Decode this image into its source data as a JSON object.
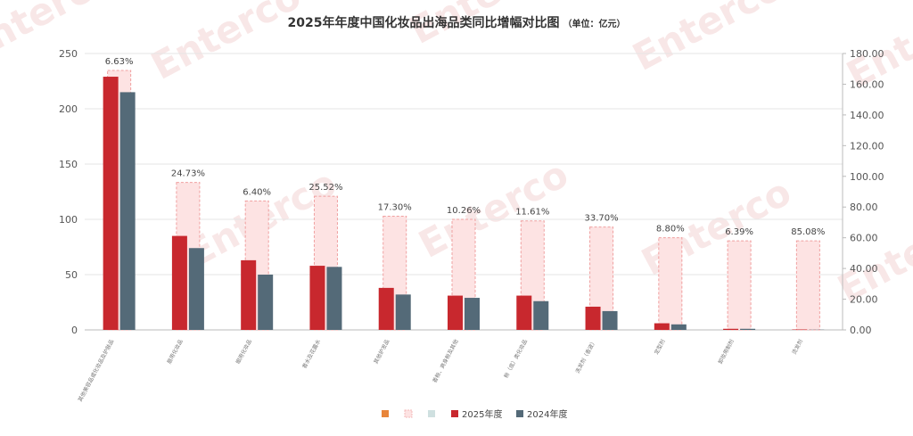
{
  "chart_data": {
    "type": "bar",
    "title": "2025年年度中国化妆品出海品类同比增幅对比图",
    "unit_note": "（单位：亿元）",
    "categories": [
      "其他美容品或化妆品及护肤品",
      "唇用化妆品",
      "眼用化妆品",
      "香水及花露水",
      "其他护发品",
      "香粉、爽身粉及其他",
      "粉（底）类化妆品",
      "洗发剂（香波）",
      "定型剂",
      "卸妆用制剂",
      "烫发剂"
    ],
    "series": [
      {
        "name": "",
        "axis": "right",
        "style": "dashed-light-pink",
        "values": [
          169,
          96,
          84,
          87,
          74,
          72,
          71,
          67,
          60,
          58,
          58
        ]
      },
      {
        "name": "2025年度",
        "axis": "left",
        "color": "#c8282e",
        "values": [
          229,
          85,
          63,
          58,
          38,
          31,
          31,
          21,
          6,
          1,
          0.4
        ]
      },
      {
        "name": "2024年度",
        "axis": "left",
        "color": "#546a78",
        "values": [
          215,
          74,
          50,
          57,
          32,
          29,
          26,
          17,
          5,
          1,
          0.2
        ]
      }
    ],
    "growth_labels": [
      "6.63%",
      "24.73%",
      "6.40%",
      "25.52%",
      "17.30%",
      "10.26%",
      "11.61%",
      "33.70%",
      "8.80%",
      "6.39%",
      "85.08%"
    ],
    "ylim_left": [
      0,
      250
    ],
    "yticks_left": [
      "0",
      "50",
      "100",
      "150",
      "200",
      "250"
    ],
    "ylim_right": [
      0,
      180
    ],
    "yticks_right": [
      "0.00",
      "20.00",
      "40.00",
      "60.00",
      "80.00",
      "100.00",
      "120.00",
      "140.00",
      "160.00",
      "180.00"
    ],
    "grid": true,
    "legend": {
      "position": "bottom-center",
      "items": [
        {
          "label": "",
          "color": "#e8853a",
          "kind": "filled"
        },
        {
          "label": "",
          "color": "#f4b8b8",
          "kind": "dashed"
        },
        {
          "label": "",
          "color": "#cfe0e0",
          "kind": "filled"
        },
        {
          "label": "2025年度",
          "color": "#c8282e",
          "kind": "filled"
        },
        {
          "label": "2024年度",
          "color": "#546a78",
          "kind": "filled"
        }
      ]
    },
    "colors": {
      "growth_fill": "#fde3e3",
      "growth_stroke": "#f0a0a0",
      "bar_2025": "#c8282e",
      "bar_2024": "#546a78",
      "watermark": "#f3d4d4"
    },
    "watermark": "Enterco"
  }
}
